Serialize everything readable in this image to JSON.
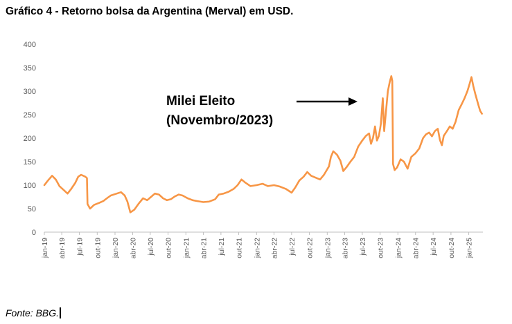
{
  "chart_data": {
    "type": "line",
    "title": "Gráfico 4 - Retorno bolsa da Argentina (Merval) em USD.",
    "source": "Fonte: BBG.",
    "xlabel": "",
    "ylabel": "",
    "ylim": [
      0,
      400
    ],
    "yticks": [
      0,
      50,
      100,
      150,
      200,
      250,
      300,
      350,
      400
    ],
    "xticks": [
      "jan-19",
      "abr-19",
      "jul-19",
      "out-19",
      "jan-20",
      "abr-20",
      "jul-20",
      "out-20",
      "jan-21",
      "abr-21",
      "jul-21",
      "out-21",
      "jan-22",
      "abr-22",
      "jul-22",
      "out-22",
      "jan-23",
      "abr-23",
      "jul-23",
      "out-23",
      "jan-24",
      "abr-24",
      "jul-24",
      "out-24",
      "jan-25"
    ],
    "grid": false,
    "legend": "none",
    "color": "#F79646",
    "annotation": {
      "lines": [
        "Milei Eleito",
        "(Novembro/2023)"
      ],
      "arrow": "points right toward Nov-2023"
    },
    "series": [
      {
        "points": [
          [
            "2019-01-01",
            100
          ],
          [
            "2019-01-20",
            110
          ],
          [
            "2019-02-10",
            120
          ],
          [
            "2019-03-01",
            112
          ],
          [
            "2019-03-20",
            98
          ],
          [
            "2019-04-10",
            90
          ],
          [
            "2019-05-01",
            82
          ],
          [
            "2019-05-20",
            92
          ],
          [
            "2019-06-10",
            105
          ],
          [
            "2019-06-25",
            118
          ],
          [
            "2019-07-10",
            122
          ],
          [
            "2019-08-01",
            118
          ],
          [
            "2019-08-09",
            115
          ],
          [
            "2019-08-12",
            60
          ],
          [
            "2019-08-25",
            50
          ],
          [
            "2019-09-15",
            58
          ],
          [
            "2019-10-10",
            62
          ],
          [
            "2019-11-01",
            66
          ],
          [
            "2019-11-20",
            72
          ],
          [
            "2019-12-10",
            78
          ],
          [
            "2020-01-10",
            82
          ],
          [
            "2020-02-01",
            85
          ],
          [
            "2020-02-20",
            78
          ],
          [
            "2020-03-05",
            65
          ],
          [
            "2020-03-20",
            42
          ],
          [
            "2020-04-10",
            48
          ],
          [
            "2020-05-01",
            60
          ],
          [
            "2020-05-25",
            72
          ],
          [
            "2020-06-15",
            68
          ],
          [
            "2020-07-05",
            75
          ],
          [
            "2020-07-25",
            82
          ],
          [
            "2020-08-15",
            80
          ],
          [
            "2020-09-05",
            72
          ],
          [
            "2020-09-25",
            68
          ],
          [
            "2020-10-15",
            70
          ],
          [
            "2020-11-05",
            76
          ],
          [
            "2020-11-25",
            80
          ],
          [
            "2020-12-15",
            78
          ],
          [
            "2021-01-10",
            72
          ],
          [
            "2021-02-05",
            68
          ],
          [
            "2021-03-01",
            66
          ],
          [
            "2021-04-01",
            64
          ],
          [
            "2021-05-01",
            65
          ],
          [
            "2021-06-01",
            70
          ],
          [
            "2021-06-20",
            80
          ],
          [
            "2021-07-15",
            82
          ],
          [
            "2021-08-10",
            86
          ],
          [
            "2021-09-05",
            92
          ],
          [
            "2021-09-25",
            100
          ],
          [
            "2021-10-15",
            112
          ],
          [
            "2021-11-05",
            105
          ],
          [
            "2021-12-01",
            98
          ],
          [
            "2022-01-01",
            100
          ],
          [
            "2022-02-01",
            103
          ],
          [
            "2022-03-01",
            98
          ],
          [
            "2022-04-01",
            100
          ],
          [
            "2022-05-01",
            97
          ],
          [
            "2022-06-01",
            92
          ],
          [
            "2022-07-01",
            84
          ],
          [
            "2022-07-20",
            95
          ],
          [
            "2022-08-10",
            110
          ],
          [
            "2022-09-01",
            118
          ],
          [
            "2022-09-20",
            128
          ],
          [
            "2022-10-10",
            120
          ],
          [
            "2022-11-01",
            116
          ],
          [
            "2022-11-25",
            112
          ],
          [
            "2022-12-15",
            122
          ],
          [
            "2023-01-10",
            140
          ],
          [
            "2023-01-20",
            160
          ],
          [
            "2023-02-01",
            172
          ],
          [
            "2023-02-20",
            165
          ],
          [
            "2023-03-10",
            152
          ],
          [
            "2023-03-25",
            130
          ],
          [
            "2023-04-10",
            138
          ],
          [
            "2023-05-01",
            150
          ],
          [
            "2023-05-20",
            160
          ],
          [
            "2023-06-10",
            182
          ],
          [
            "2023-07-01",
            195
          ],
          [
            "2023-07-20",
            205
          ],
          [
            "2023-08-05",
            210
          ],
          [
            "2023-08-15",
            188
          ],
          [
            "2023-08-25",
            200
          ],
          [
            "2023-09-05",
            225
          ],
          [
            "2023-09-15",
            195
          ],
          [
            "2023-09-25",
            205
          ],
          [
            "2023-10-05",
            230
          ],
          [
            "2023-10-15",
            285
          ],
          [
            "2023-10-22",
            215
          ],
          [
            "2023-11-01",
            260
          ],
          [
            "2023-11-10",
            300
          ],
          [
            "2023-11-20",
            320
          ],
          [
            "2023-11-28",
            332
          ],
          [
            "2023-12-03",
            322
          ],
          [
            "2023-12-07",
            145
          ],
          [
            "2023-12-15",
            132
          ],
          [
            "2023-12-28",
            138
          ],
          [
            "2024-01-15",
            155
          ],
          [
            "2024-02-01",
            150
          ],
          [
            "2024-02-20",
            135
          ],
          [
            "2024-03-10",
            160
          ],
          [
            "2024-04-01",
            168
          ],
          [
            "2024-04-20",
            178
          ],
          [
            "2024-05-10",
            200
          ],
          [
            "2024-05-25",
            208
          ],
          [
            "2024-06-10",
            212
          ],
          [
            "2024-06-25",
            204
          ],
          [
            "2024-07-10",
            215
          ],
          [
            "2024-07-25",
            220
          ],
          [
            "2024-08-05",
            196
          ],
          [
            "2024-08-15",
            185
          ],
          [
            "2024-08-25",
            205
          ],
          [
            "2024-09-10",
            215
          ],
          [
            "2024-09-25",
            225
          ],
          [
            "2024-10-10",
            220
          ],
          [
            "2024-10-25",
            235
          ],
          [
            "2024-11-10",
            260
          ],
          [
            "2024-11-25",
            272
          ],
          [
            "2024-12-10",
            285
          ],
          [
            "2024-12-25",
            300
          ],
          [
            "2025-01-05",
            315
          ],
          [
            "2025-01-15",
            330
          ],
          [
            "2025-01-25",
            310
          ],
          [
            "2025-02-05",
            292
          ],
          [
            "2025-02-20",
            270
          ],
          [
            "2025-03-01",
            258
          ],
          [
            "2025-03-10",
            252
          ]
        ]
      }
    ]
  }
}
